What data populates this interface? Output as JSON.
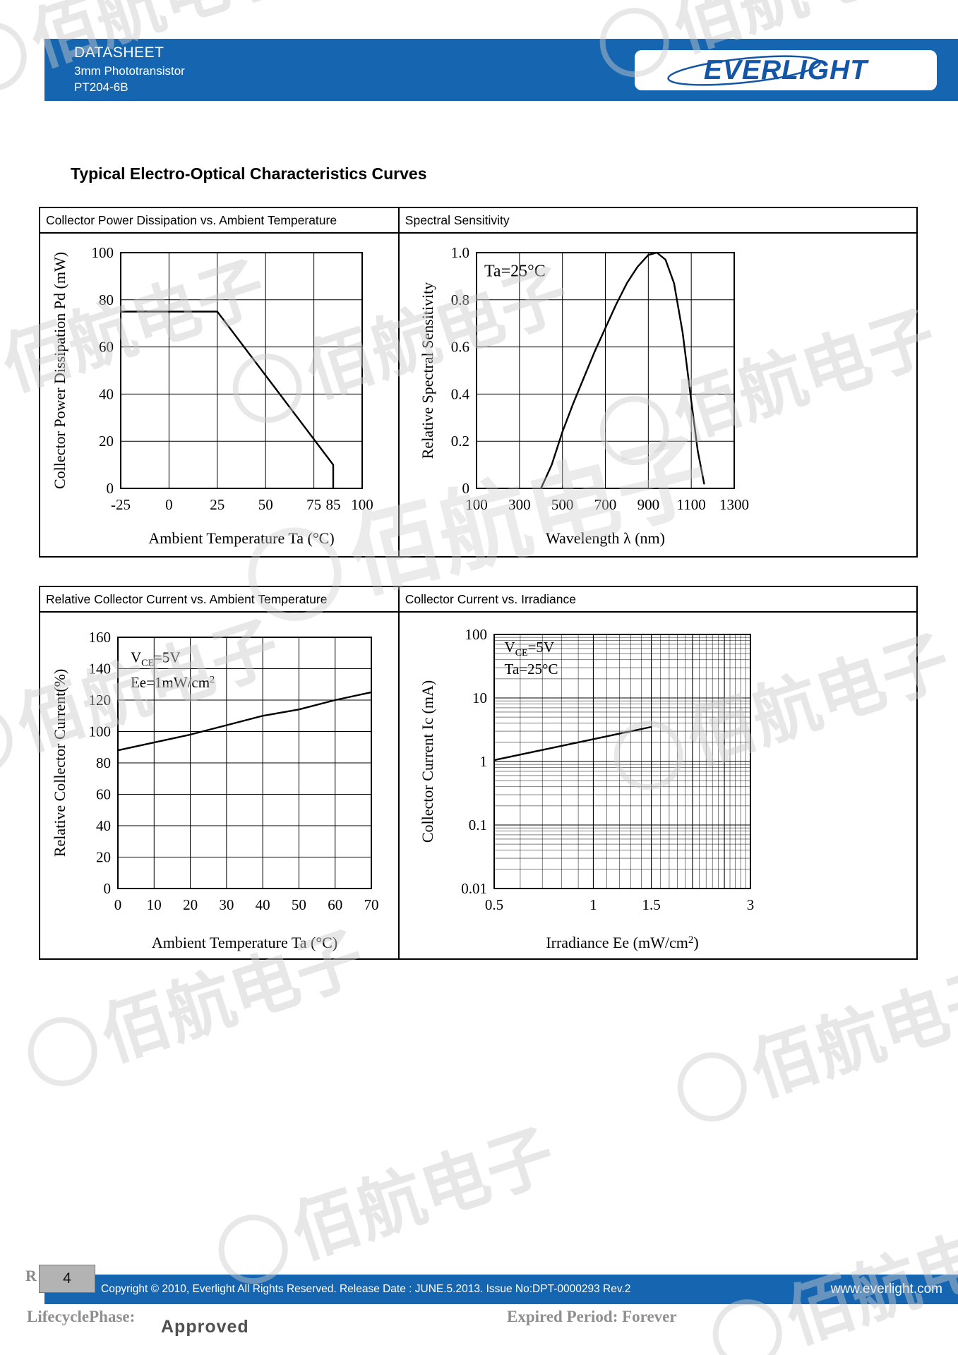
{
  "header": {
    "doc_type": "DATASHEET",
    "product": "3mm Phototransistor",
    "part_number": "PT204-6B",
    "brand": "EVERLIGHT",
    "bar_color": "#1565b0"
  },
  "page": {
    "title": "Typical Electro-Optical Characteristics Curves",
    "number": "4"
  },
  "watermark": {
    "text": "佰航电子"
  },
  "chart_data": [
    {
      "type": "line",
      "title": "Collector Power Dissipation vs. Ambient Temperature",
      "xlabel": "Ambient Temperature Ta (°C)",
      "ylabel": "Collector Power Dissipation Pd (mW)",
      "x_scale": "linear",
      "xlim": [
        -25,
        100
      ],
      "x_tick_values": [
        -25,
        0,
        25,
        50,
        75,
        85,
        100
      ],
      "x_tick_labels": [
        "-25",
        "0",
        "25",
        "50",
        "75",
        "85",
        "100"
      ],
      "x_grid": [
        0,
        25,
        50,
        75
      ],
      "y_scale": "linear",
      "ylim": [
        0,
        100
      ],
      "y_tick_values": [
        0,
        20,
        40,
        60,
        80,
        100
      ],
      "y_tick_labels": [
        "0",
        "20",
        "40",
        "60",
        "80",
        "100"
      ],
      "y_grid": [
        20,
        40,
        60,
        80
      ],
      "grid": true,
      "legend": "none",
      "series": [
        {
          "name": "Pd",
          "points": [
            [
              -25,
              75
            ],
            [
              25,
              75
            ],
            [
              85,
              10
            ],
            [
              85,
              0
            ]
          ]
        }
      ],
      "annotations": []
    },
    {
      "type": "line",
      "title": "Spectral Sensitivity",
      "xlabel": "Wavelength λ (nm)",
      "ylabel": "Relative Spectral Sensitivity",
      "x_scale": "linear",
      "xlim": [
        100,
        1300
      ],
      "x_tick_values": [
        100,
        300,
        500,
        700,
        900,
        1100,
        1300
      ],
      "x_tick_labels": [
        "100",
        "300",
        "500",
        "700",
        "900",
        "1100",
        "1300"
      ],
      "x_grid": [
        300,
        500,
        700,
        900,
        1100
      ],
      "y_scale": "linear",
      "ylim": [
        0,
        1.0
      ],
      "y_tick_values": [
        0,
        0.2,
        0.4,
        0.6,
        0.8,
        1.0
      ],
      "y_tick_labels": [
        "0",
        "0.2",
        "0.4",
        "0.6",
        "0.8",
        "1.0"
      ],
      "y_grid": [
        0.2,
        0.4,
        0.6,
        0.8
      ],
      "grid": true,
      "legend": "none",
      "series": [
        {
          "name": "relative sensitivity",
          "points": [
            [
              400,
              0
            ],
            [
              450,
              0.1
            ],
            [
              500,
              0.24
            ],
            [
              550,
              0.36
            ],
            [
              600,
              0.47
            ],
            [
              650,
              0.58
            ],
            [
              700,
              0.68
            ],
            [
              750,
              0.78
            ],
            [
              800,
              0.87
            ],
            [
              850,
              0.94
            ],
            [
              900,
              0.99
            ],
            [
              940,
              1.0
            ],
            [
              980,
              0.97
            ],
            [
              1020,
              0.87
            ],
            [
              1060,
              0.66
            ],
            [
              1100,
              0.37
            ],
            [
              1130,
              0.16
            ],
            [
              1160,
              0.02
            ]
          ]
        }
      ],
      "annotations": [
        {
          "text": "Ta=25°C",
          "fx": 0.03,
          "fy": 0.1,
          "size": 24
        }
      ]
    },
    {
      "type": "line",
      "title": "Relative Collector Current vs. Ambient Temperature",
      "xlabel": "Ambient Temperature Ta (°C)",
      "ylabel": "Relative Collector Current(%)",
      "x_scale": "linear",
      "xlim": [
        0,
        70
      ],
      "x_tick_values": [
        0,
        10,
        20,
        30,
        40,
        50,
        60,
        70
      ],
      "x_tick_labels": [
        "0",
        "10",
        "20",
        "30",
        "40",
        "50",
        "60",
        "70"
      ],
      "x_grid": [
        10,
        20,
        30,
        40,
        50,
        60
      ],
      "y_scale": "linear",
      "ylim": [
        0,
        160
      ],
      "y_tick_values": [
        0,
        20,
        40,
        60,
        80,
        100,
        120,
        140,
        160
      ],
      "y_tick_labels": [
        "0",
        "20",
        "40",
        "60",
        "80",
        "100",
        "120",
        "140",
        "160"
      ],
      "y_grid": [
        20,
        40,
        60,
        80,
        100,
        120,
        140
      ],
      "grid": true,
      "legend": "none",
      "series": [
        {
          "name": "relative collector current",
          "points": [
            [
              0,
              88
            ],
            [
              10,
              93
            ],
            [
              20,
              98
            ],
            [
              30,
              104
            ],
            [
              40,
              110
            ],
            [
              50,
              114
            ],
            [
              60,
              120
            ],
            [
              70,
              125
            ]
          ]
        }
      ],
      "annotations": [
        {
          "text": "V_{CE}=5V",
          "fx": 0.05,
          "fy": 0.1,
          "size": 21
        },
        {
          "text": "Ee=1mW/cm^{2}",
          "fx": 0.05,
          "fy": 0.2,
          "size": 21
        }
      ]
    },
    {
      "type": "line",
      "title": "Collector Current vs. Irradiance",
      "xlabel": "Irradiance Ee (mW/cm^{2})",
      "ylabel": "Collector Current Ic (mA)",
      "x_scale": "log",
      "xlim": [
        0.5,
        3
      ],
      "x_tick_values": [
        0.5,
        1,
        1.5,
        3
      ],
      "x_tick_labels": [
        "0.5",
        "1",
        "1.5",
        "3"
      ],
      "y_scale": "log",
      "ylim": [
        0.01,
        100
      ],
      "y_tick_values": [
        0.01,
        0.1,
        1,
        10,
        100
      ],
      "y_tick_labels": [
        "0.01",
        "0.1",
        "1",
        "10",
        "100"
      ],
      "grid": true,
      "legend": "none",
      "series": [
        {
          "name": "Ic",
          "points": [
            [
              0.5,
              1.05
            ],
            [
              1.5,
              3.5
            ]
          ]
        }
      ],
      "annotations": [
        {
          "text": "V_{CE}=5V",
          "fx": 0.04,
          "fy": 0.07,
          "size": 21
        },
        {
          "text": "Ta=25°C",
          "fx": 0.04,
          "fy": 0.155,
          "size": 21
        }
      ]
    }
  ],
  "footer": {
    "residual_letter": "R",
    "page_number": "4",
    "copyright": "Copyright © 2010, Everlight All Rights Reserved. Release Date : JUNE.5.2013. Issue No:DPT-0000293   Rev.2",
    "website": "www.everlight.com",
    "lifecycle_label": "LifecyclePhase:",
    "lifecycle_value": "Approved",
    "expired_label": "Expired Period: Forever"
  }
}
